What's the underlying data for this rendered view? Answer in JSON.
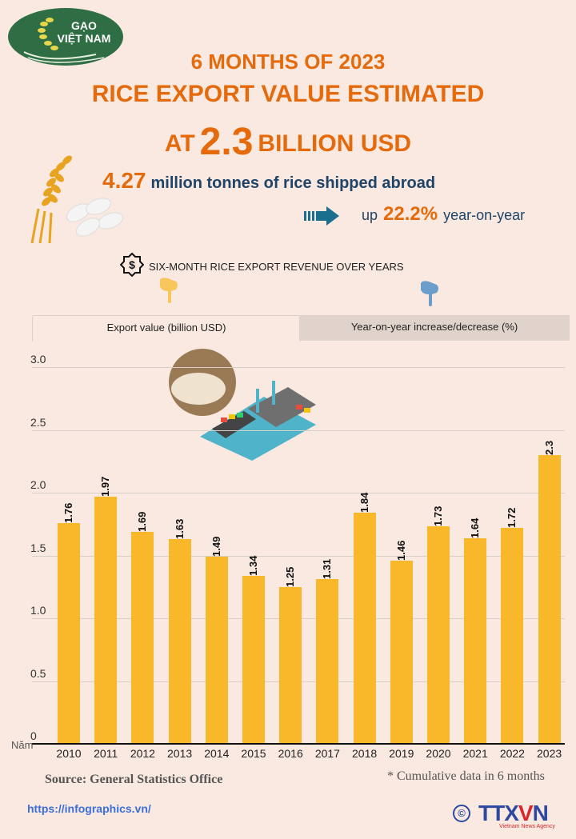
{
  "logo": {
    "line1": "GẠO",
    "line2": "VIỆT NAM"
  },
  "header": {
    "line1": "6 MONTHS OF 2023",
    "line2": "RICE EXPORT VALUE ESTIMATED",
    "line3_prefix": "AT",
    "line3_value": "2.3",
    "line3_suffix": "BILLION USD"
  },
  "stats": {
    "volume_value": "4.27",
    "volume_text": "million tonnes of rice shipped abroad",
    "change_prefix": "up",
    "change_value": "22.2%",
    "change_suffix": "year-on-year"
  },
  "section": {
    "icon": "dollar-badge-icon",
    "title": "SIX-MONTH RICE EXPORT REVENUE OVER YEARS"
  },
  "tabs": [
    {
      "label": "Export value (billion USD)",
      "active": true
    },
    {
      "label": "Year-on-year increase/decrease (%)",
      "active": false
    }
  ],
  "colors": {
    "bar": "#f8b82a",
    "title": "#e56a0c",
    "text_dark": "#1f4468",
    "background": "#f9e9e1",
    "arrow": "#1a6f8f",
    "link": "#3b6fd8"
  },
  "chart_data": {
    "type": "bar",
    "title": "SIX-MONTH RICE EXPORT REVENUE OVER YEARS",
    "xlabel": "Năm",
    "ylabel": "Export value (billion USD)",
    "categories": [
      "2010",
      "2011",
      "2012",
      "2013",
      "2014",
      "2015",
      "2016",
      "2017",
      "2018",
      "2019",
      "2020",
      "2021",
      "2022",
      "2023"
    ],
    "values": [
      1.76,
      1.97,
      1.69,
      1.63,
      1.49,
      1.34,
      1.25,
      1.31,
      1.84,
      1.46,
      1.73,
      1.64,
      1.72,
      2.3
    ],
    "value_labels": [
      "1.76",
      "1.97",
      "1.69",
      "1.63",
      "1.49",
      "1.34",
      "1.25",
      "1.31",
      "1.84",
      "1.46",
      "1.73",
      "1.64",
      "1.72",
      "2.3"
    ],
    "yticks": [
      "0",
      "0.5",
      "1.0",
      "1.5",
      "2.0",
      "2.5",
      "3.0"
    ],
    "ylim": [
      0,
      3.0
    ],
    "grid": true,
    "legend": null
  },
  "footer": {
    "source": "Source: General Statistics Office",
    "note": "* Cumulative data in 6 months",
    "url": "https://infographics.vn/",
    "copyright": "©",
    "brand_a": "TTX",
    "brand_v": "V",
    "brand_n": "N",
    "brand_sub": "Vietnam News Agency"
  }
}
